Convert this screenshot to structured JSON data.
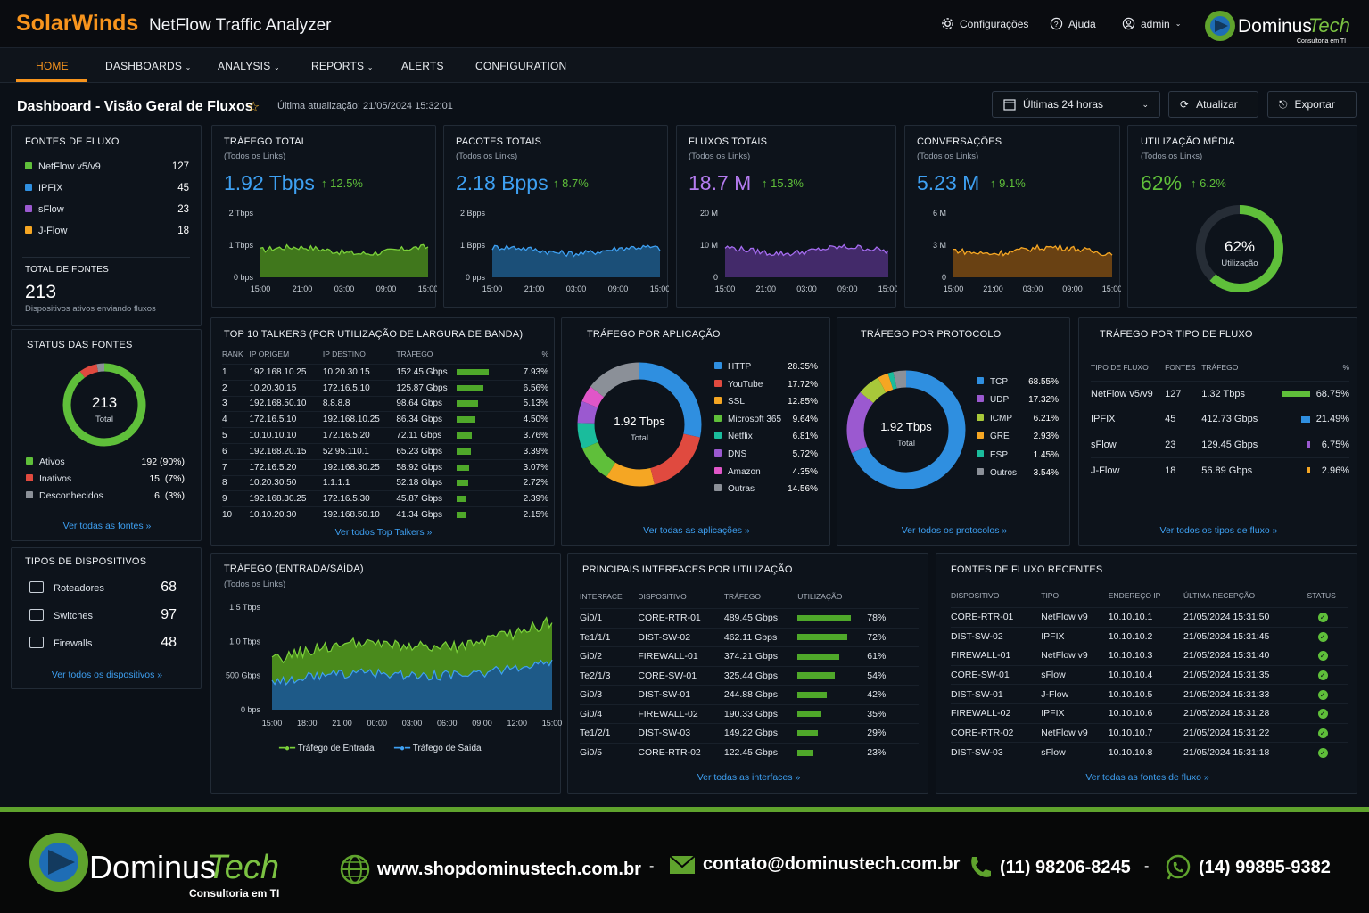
{
  "header": {
    "brand": "SolarWinds",
    "product": "NetFlow Traffic Analyzer",
    "settings": "Configurações",
    "help": "Ajuda",
    "user": "admin",
    "logo_name": "DominusTech",
    "logo_tagline": "Consultoria em TI"
  },
  "nav": [
    "HOME",
    "DASHBOARDS",
    "ANALYSIS",
    "REPORTS",
    "ALERTS",
    "CONFIGURATION"
  ],
  "page": {
    "title": "Dashboard - Visão Geral de Fluxos",
    "updated": "Última atualização: 21/05/2024 15:32:01",
    "range": "Últimas 24 horas",
    "refresh": "Atualizar",
    "export": "Exportar"
  },
  "sources": {
    "title": "FONTES DE FLUXO",
    "items": [
      {
        "label": "NetFlow v5/v9",
        "value": "127",
        "color": "#5fbf3a"
      },
      {
        "label": "IPFIX",
        "value": "45",
        "color": "#2f8fe0"
      },
      {
        "label": "sFlow",
        "value": "23",
        "color": "#9b59d0"
      },
      {
        "label": "J-Flow",
        "value": "18",
        "color": "#f5a623"
      }
    ],
    "total_label": "TOTAL DE FONTES",
    "total": "213",
    "total_sub": "Dispositivos ativos enviando fluxos"
  },
  "status": {
    "title": "STATUS DAS FONTES",
    "total": "213",
    "total_label": "Total",
    "items": [
      {
        "label": "Ativos",
        "value": "192 (90%)",
        "color": "#5fbf3a",
        "frac": 0.9
      },
      {
        "label": "Inativos",
        "value": "15  (7%)",
        "color": "#e04a3f",
        "frac": 0.07
      },
      {
        "label": "Desconhecidos",
        "value": "6  (3%)",
        "color": "#8b9098",
        "frac": 0.03
      }
    ],
    "link": "Ver todas as fontes »"
  },
  "devices": {
    "title": "TIPOS DE DISPOSITIVOS",
    "items": [
      {
        "label": "Roteadores",
        "value": "68",
        "icon": "router-icon"
      },
      {
        "label": "Switches",
        "value": "97",
        "icon": "switch-icon"
      },
      {
        "label": "Firewalls",
        "value": "48",
        "icon": "firewall-icon"
      }
    ],
    "link": "Ver todos os dispositivos »"
  },
  "kpis": [
    {
      "title": "TRÁFEGO TOTAL",
      "sub": "(Todos os Links)",
      "value": "1.92 Tbps",
      "change": "12.5%",
      "color": "#3ea0f2",
      "fill": "#4a8a1c",
      "stroke": "#7bd13a",
      "y": [
        "2 Tbps",
        "1 Tbps",
        "0 bps"
      ],
      "x": [
        "15:00",
        "21:00",
        "03:00",
        "09:00",
        "15:00"
      ]
    },
    {
      "title": "PACOTES TOTAIS",
      "sub": "(Todos os Links)",
      "value": "2.18 Bpps",
      "change": "8.7%",
      "color": "#3ea0f2",
      "fill": "#1e5a88",
      "stroke": "#3ea0f2",
      "y": [
        "2 Bpps",
        "1 Bpps",
        "0 pps"
      ],
      "x": [
        "15:00",
        "21:00",
        "03:00",
        "09:00",
        "15:00"
      ]
    },
    {
      "title": "FLUXOS TOTAIS",
      "sub": "(Todos os Links)",
      "value": "18.7 M",
      "change": "15.3%",
      "color": "#b57cf0",
      "fill": "#4d2f78",
      "stroke": "#a56cf0",
      "y": [
        "20 M",
        "10 M",
        "0"
      ],
      "x": [
        "15:00",
        "21:00",
        "03:00",
        "09:00",
        "15:00"
      ]
    },
    {
      "title": "CONVERSAÇÕES",
      "sub": "(Todos os Links)",
      "value": "5.23 M",
      "change": "9.1%",
      "color": "#3ea0f2",
      "fill": "#7a4a12",
      "stroke": "#f5a623",
      "y": [
        "6 M",
        "3 M",
        "0"
      ],
      "x": [
        "15:00",
        "21:00",
        "03:00",
        "09:00",
        "15:00"
      ]
    }
  ],
  "util": {
    "title": "UTILIZAÇÃO MÉDIA",
    "sub": "(Todos os Links)",
    "value": "62%",
    "change": "6.2%",
    "center": "62%",
    "center_label": "Utilização",
    "frac": 0.62
  },
  "talkers": {
    "title": "TOP 10 TALKERS (POR UTILIZAÇÃO DE LARGURA DE BANDA)",
    "cols": [
      "RANK",
      "IP ORIGEM",
      "IP DESTINO",
      "TRÁFEGO",
      "%"
    ],
    "rows": [
      [
        "1",
        "192.168.10.25",
        "10.20.30.15",
        "152.45 Gbps",
        "7.93%",
        7.93
      ],
      [
        "2",
        "10.20.30.15",
        "172.16.5.10",
        "125.87 Gbps",
        "6.56%",
        6.56
      ],
      [
        "3",
        "192.168.50.10",
        "8.8.8.8",
        "98.64 Gbps",
        "5.13%",
        5.13
      ],
      [
        "4",
        "172.16.5.10",
        "192.168.10.25",
        "86.34 Gbps",
        "4.50%",
        4.5
      ],
      [
        "5",
        "10.10.10.10",
        "172.16.5.20",
        "72.11 Gbps",
        "3.76%",
        3.76
      ],
      [
        "6",
        "192.168.20.15",
        "52.95.110.1",
        "65.23 Gbps",
        "3.39%",
        3.39
      ],
      [
        "7",
        "172.16.5.20",
        "192.168.30.25",
        "58.92 Gbps",
        "3.07%",
        3.07
      ],
      [
        "8",
        "10.20.30.50",
        "1.1.1.1",
        "52.18 Gbps",
        "2.72%",
        2.72
      ],
      [
        "9",
        "192.168.30.25",
        "172.16.5.30",
        "45.87 Gbps",
        "2.39%",
        2.39
      ],
      [
        "10",
        "10.10.20.30",
        "192.168.50.10",
        "41.34 Gbps",
        "2.15%",
        2.15
      ]
    ],
    "link": "Ver todos Top Talkers »"
  },
  "apps": {
    "title": "TRÁFEGO POR APLICAÇÃO",
    "center": "1.92 Tbps",
    "center_label": "Total",
    "items": [
      {
        "label": "HTTP",
        "value": "28.35%",
        "color": "#2f8fe0",
        "frac": 28.35
      },
      {
        "label": "YouTube",
        "value": "17.72%",
        "color": "#e04a3f",
        "frac": 17.72
      },
      {
        "label": "SSL",
        "value": "12.85%",
        "color": "#f5a623",
        "frac": 12.85
      },
      {
        "label": "Microsoft 365",
        "value": "9.64%",
        "color": "#5fbf3a",
        "frac": 9.64
      },
      {
        "label": "Netflix",
        "value": "6.81%",
        "color": "#1abc9c",
        "frac": 6.81
      },
      {
        "label": "DNS",
        "value": "5.72%",
        "color": "#9b59d0",
        "frac": 5.72
      },
      {
        "label": "Amazon",
        "value": "4.35%",
        "color": "#e056c8",
        "frac": 4.35
      },
      {
        "label": "Outras",
        "value": "14.56%",
        "color": "#8b9098",
        "frac": 14.56
      }
    ],
    "link": "Ver todas as aplicações »"
  },
  "protocols": {
    "title": "TRÁFEGO POR PROTOCOLO",
    "center": "1.92 Tbps",
    "center_label": "Total",
    "items": [
      {
        "label": "TCP",
        "value": "68.55%",
        "color": "#2f8fe0",
        "frac": 68.55
      },
      {
        "label": "UDP",
        "value": "17.32%",
        "color": "#9b59d0",
        "frac": 17.32
      },
      {
        "label": "ICMP",
        "value": "6.21%",
        "color": "#a8c83a",
        "frac": 6.21
      },
      {
        "label": "GRE",
        "value": "2.93%",
        "color": "#f5a623",
        "frac": 2.93
      },
      {
        "label": "ESP",
        "value": "1.45%",
        "color": "#1abc9c",
        "frac": 1.45
      },
      {
        "label": "Outros",
        "value": "3.54%",
        "color": "#8b9098",
        "frac": 3.54
      }
    ],
    "link": "Ver todos os protocolos »"
  },
  "flowtypes": {
    "title": "TRÁFEGO POR TIPO DE FLUXO",
    "cols": [
      "TIPO DE FLUXO",
      "FONTES",
      "TRÁFEGO",
      "%"
    ],
    "rows": [
      [
        "NetFlow v5/v9",
        "127",
        "1.32 Tbps",
        "68.75%",
        68.75,
        "#5fbf3a"
      ],
      [
        "IPFIX",
        "45",
        "412.73 Gbps",
        "21.49%",
        21.49,
        "#2f8fe0"
      ],
      [
        "sFlow",
        "23",
        "129.45 Gbps",
        "6.75%",
        6.75,
        "#9b59d0"
      ],
      [
        "J-Flow",
        "18",
        "56.89 Gbps",
        "2.96%",
        2.96,
        "#f5a623"
      ]
    ],
    "link": "Ver todos os tipos de fluxo »"
  },
  "inout": {
    "title": "TRÁFEGO (ENTRADA/SAÍDA)",
    "sub": "(Todos os Links)",
    "y": [
      "1.5 Tbps",
      "1.0 Tbps",
      "500 Gbps",
      "0 bps"
    ],
    "x": [
      "15:00",
      "18:00",
      "21:00",
      "00:00",
      "03:00",
      "06:00",
      "09:00",
      "12:00",
      "15:00"
    ],
    "legend_in": "Tráfego de Entrada",
    "legend_out": "Tráfego de Saída"
  },
  "interfaces": {
    "title": "PRINCIPAIS INTERFACES POR UTILIZAÇÃO",
    "cols": [
      "INTERFACE",
      "DISPOSITIVO",
      "TRÁFEGO",
      "UTILIZAÇÃO"
    ],
    "rows": [
      [
        "Gi0/1",
        "CORE-RTR-01",
        "489.45 Gbps",
        "78%",
        78
      ],
      [
        "Te1/1/1",
        "DIST-SW-02",
        "462.11 Gbps",
        "72%",
        72
      ],
      [
        "Gi0/2",
        "FIREWALL-01",
        "374.21 Gbps",
        "61%",
        61
      ],
      [
        "Te2/1/3",
        "CORE-SW-01",
        "325.44 Gbps",
        "54%",
        54
      ],
      [
        "Gi0/3",
        "DIST-SW-01",
        "244.88 Gbps",
        "42%",
        42
      ],
      [
        "Gi0/4",
        "FIREWALL-02",
        "190.33 Gbps",
        "35%",
        35
      ],
      [
        "Te1/2/1",
        "DIST-SW-03",
        "149.22 Gbps",
        "29%",
        29
      ],
      [
        "Gi0/5",
        "CORE-RTR-02",
        "122.45 Gbps",
        "23%",
        23
      ]
    ],
    "link": "Ver todas as interfaces »"
  },
  "recent": {
    "title": "FONTES DE FLUXO RECENTES",
    "cols": [
      "DISPOSITIVO",
      "TIPO",
      "ENDEREÇO IP",
      "ÚLTIMA RECEPÇÃO",
      "STATUS"
    ],
    "rows": [
      [
        "CORE-RTR-01",
        "NetFlow v9",
        "10.10.10.1",
        "21/05/2024 15:31:50"
      ],
      [
        "DIST-SW-02",
        "IPFIX",
        "10.10.10.2",
        "21/05/2024 15:31:45"
      ],
      [
        "FIREWALL-01",
        "NetFlow v9",
        "10.10.10.3",
        "21/05/2024 15:31:40"
      ],
      [
        "CORE-SW-01",
        "sFlow",
        "10.10.10.4",
        "21/05/2024 15:31:35"
      ],
      [
        "DIST-SW-01",
        "J-Flow",
        "10.10.10.5",
        "21/05/2024 15:31:33"
      ],
      [
        "FIREWALL-02",
        "IPFIX",
        "10.10.10.6",
        "21/05/2024 15:31:28"
      ],
      [
        "CORE-RTR-02",
        "NetFlow v9",
        "10.10.10.7",
        "21/05/2024 15:31:22"
      ],
      [
        "DIST-SW-03",
        "sFlow",
        "10.10.10.8",
        "21/05/2024 15:31:18"
      ]
    ],
    "link": "Ver todas as fontes de fluxo »"
  },
  "footer": {
    "logo_name": "DominusTech",
    "logo_tagline": "Consultoria em TI",
    "site": "www.shopdominustech.com.br",
    "email": "contato@dominustech.com.br",
    "phone": "(11) 98206-8245",
    "whatsapp": "(14) 99895-9382"
  }
}
